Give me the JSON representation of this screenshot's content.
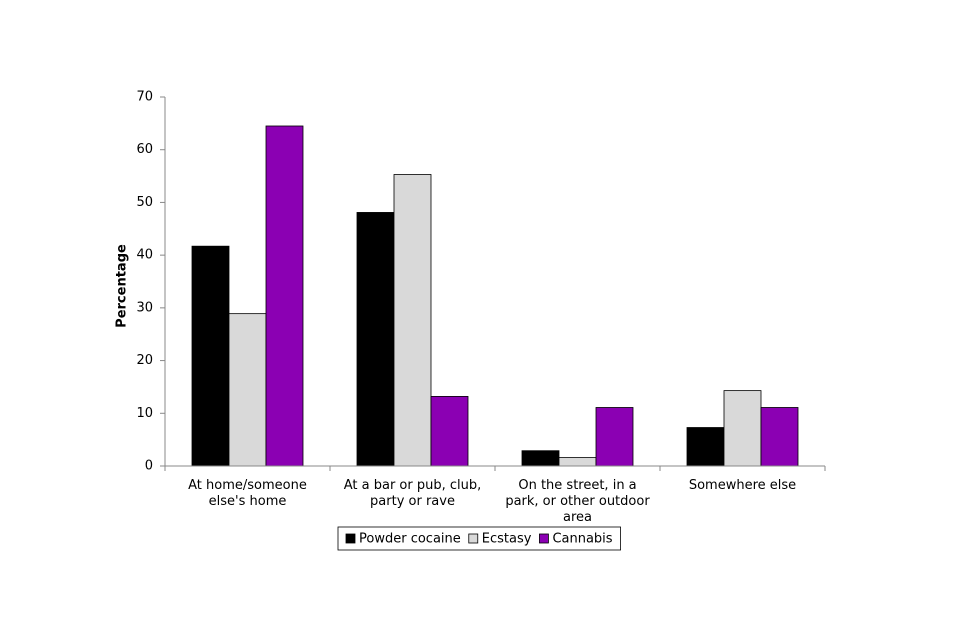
{
  "chart_data": {
    "type": "bar",
    "y_label": "Percentage",
    "categories": [
      "At home/someone else's home",
      "At a bar or pub, club, party or rave",
      "On the street, in a park, or other outdoor area",
      "Somewhere else"
    ],
    "series": [
      {
        "name": "Powder cocaine",
        "color": "#000000",
        "values": [
          41.7,
          48.1,
          2.9,
          7.3
        ]
      },
      {
        "name": "Ecstasy",
        "color": "#d9d9d9",
        "values": [
          28.9,
          55.3,
          1.6,
          14.3
        ]
      },
      {
        "name": "Cannabis",
        "color": "#8b00b3",
        "values": [
          64.5,
          13.2,
          11.1,
          11.1
        ]
      }
    ],
    "ylim": [
      0,
      70
    ],
    "yticks": [
      0,
      10,
      20,
      30,
      40,
      50,
      60,
      70
    ],
    "grid": false
  }
}
